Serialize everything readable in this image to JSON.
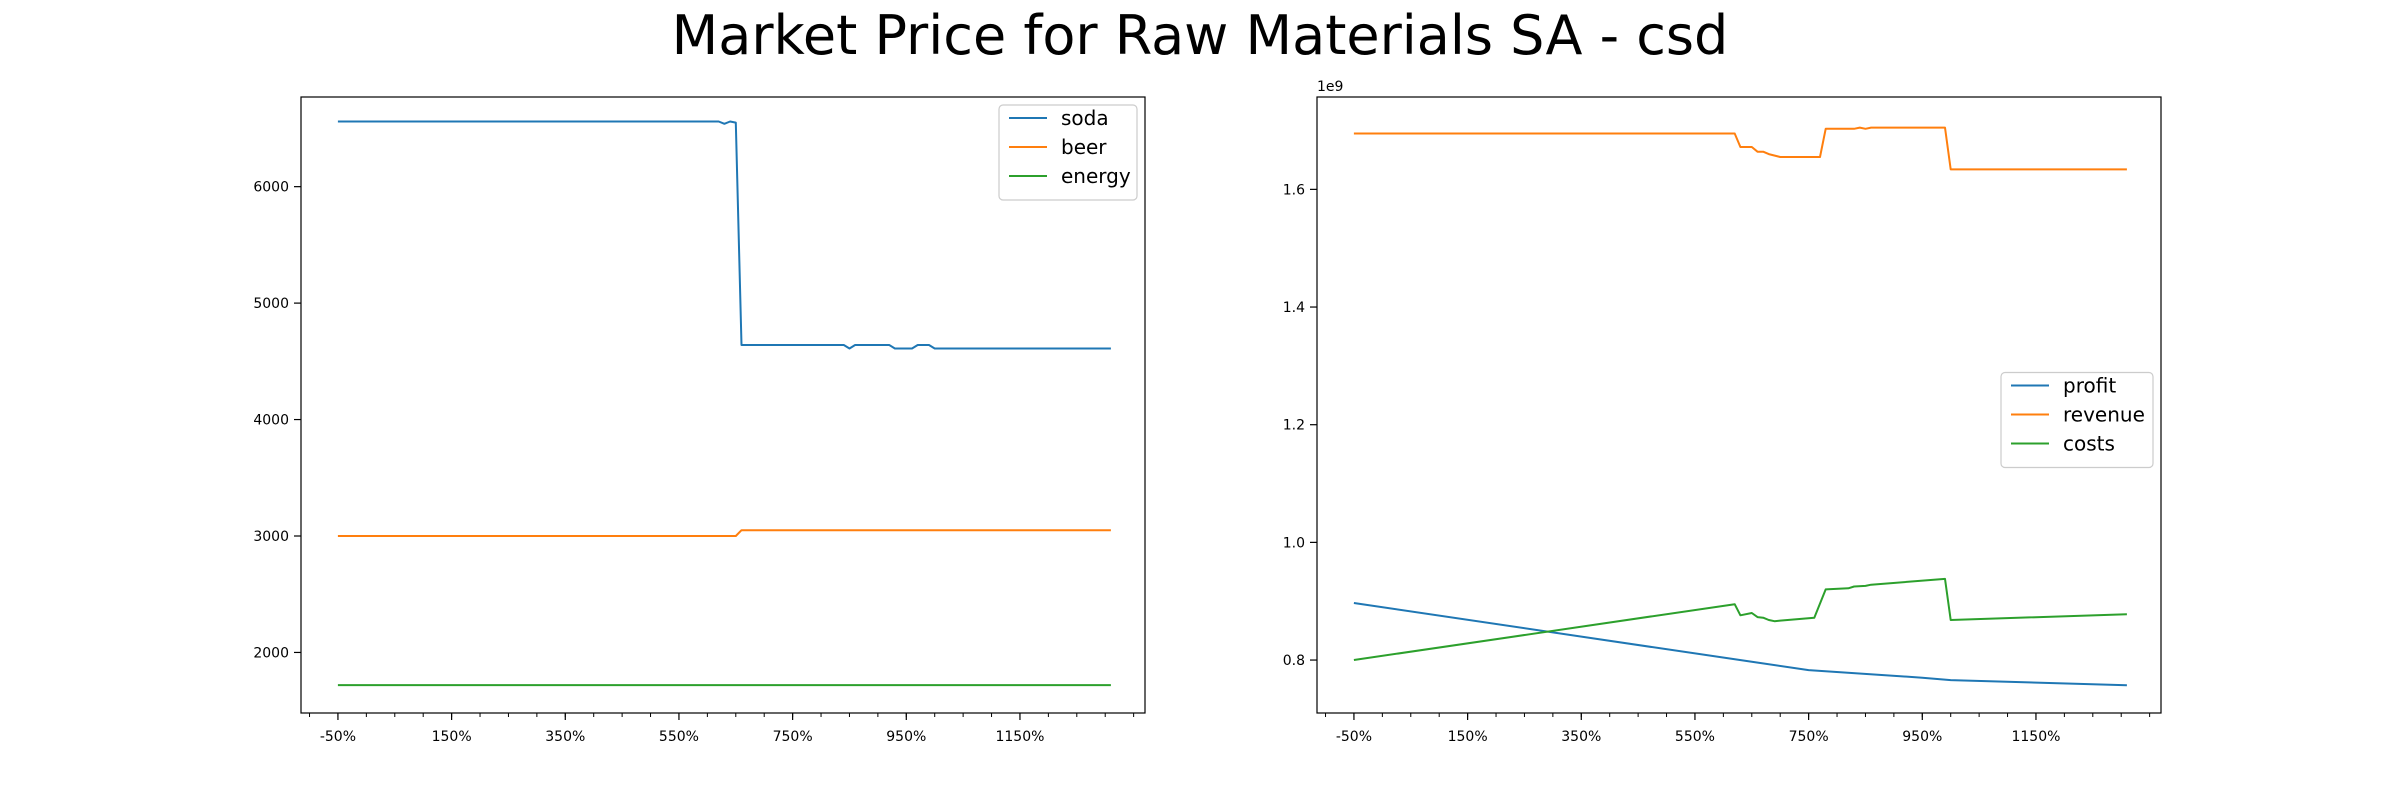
{
  "title": "Market Price for Raw Materials SA - csd",
  "chart_data": [
    {
      "type": "line",
      "x_tick_labels": [
        "-50%",
        "150%",
        "350%",
        "550%",
        "750%",
        "950%",
        "1150%"
      ],
      "x_ticks": [
        -50,
        150,
        350,
        550,
        750,
        950,
        1150
      ],
      "xlim": [
        -115,
        1370
      ],
      "ylim": [
        1480,
        6770
      ],
      "y_ticks": [
        2000,
        3000,
        4000,
        5000,
        6000
      ],
      "y_tick_labels": [
        "2000",
        "3000",
        "4000",
        "5000",
        "6000"
      ],
      "y_offset_label": "",
      "legend_position": "top-right",
      "series": [
        {
          "name": "soda",
          "color": "#1f77b4",
          "points": [
            [
              -50,
              6560
            ],
            [
              620,
              6560
            ],
            [
              630,
              6540
            ],
            [
              640,
              6560
            ],
            [
              650,
              6550
            ],
            [
              660,
              4640
            ],
            [
              840,
              4640
            ],
            [
              850,
              4610
            ],
            [
              860,
              4640
            ],
            [
              920,
              4640
            ],
            [
              930,
              4610
            ],
            [
              960,
              4610
            ],
            [
              970,
              4640
            ],
            [
              990,
              4640
            ],
            [
              1000,
              4610
            ],
            [
              1310,
              4610
            ]
          ]
        },
        {
          "name": "beer",
          "color": "#ff7f0e",
          "points": [
            [
              -50,
              3000
            ],
            [
              650,
              3000
            ],
            [
              660,
              3050
            ],
            [
              1310,
              3050
            ]
          ]
        },
        {
          "name": "energy",
          "color": "#2ca02c",
          "points": [
            [
              -50,
              1720
            ],
            [
              1310,
              1720
            ]
          ]
        }
      ]
    },
    {
      "type": "line",
      "x_tick_labels": [
        "-50%",
        "150%",
        "350%",
        "550%",
        "750%",
        "950%",
        "1150%"
      ],
      "x_ticks": [
        -50,
        150,
        350,
        550,
        750,
        950,
        1150
      ],
      "xlim": [
        -115,
        1370
      ],
      "ylim": [
        0.71,
        1.757
      ],
      "y_ticks": [
        0.8,
        1.0,
        1.2,
        1.4,
        1.6
      ],
      "y_tick_labels": [
        "0.8",
        "1.0",
        "1.2",
        "1.4",
        "1.6"
      ],
      "y_offset_label": "1e9",
      "legend_position": "center-right",
      "series": [
        {
          "name": "profit",
          "color": "#1f77b4",
          "points": [
            [
              -50,
              0.897
            ],
            [
              650,
              0.797
            ],
            [
              750,
              0.783
            ],
            [
              950,
              0.77
            ],
            [
              1000,
              0.766
            ],
            [
              1310,
              0.757
            ]
          ]
        },
        {
          "name": "revenue",
          "color": "#ff7f0e",
          "points": [
            [
              -50,
              1.695
            ],
            [
              620,
              1.695
            ],
            [
              630,
              1.672
            ],
            [
              650,
              1.672
            ],
            [
              660,
              1.664
            ],
            [
              670,
              1.664
            ],
            [
              680,
              1.66
            ],
            [
              700,
              1.655
            ],
            [
              760,
              1.655
            ],
            [
              770,
              1.655
            ],
            [
              780,
              1.703
            ],
            [
              830,
              1.703
            ],
            [
              840,
              1.705
            ],
            [
              850,
              1.703
            ],
            [
              860,
              1.705
            ],
            [
              990,
              1.705
            ],
            [
              1000,
              1.634
            ],
            [
              1310,
              1.634
            ]
          ]
        },
        {
          "name": "costs",
          "color": "#2ca02c",
          "points": [
            [
              -50,
              0.8
            ],
            [
              620,
              0.895
            ],
            [
              630,
              0.876
            ],
            [
              650,
              0.88
            ],
            [
              660,
              0.873
            ],
            [
              670,
              0.872
            ],
            [
              680,
              0.868
            ],
            [
              690,
              0.866
            ],
            [
              700,
              0.867
            ],
            [
              760,
              0.872
            ],
            [
              780,
              0.92
            ],
            [
              820,
              0.922
            ],
            [
              830,
              0.925
            ],
            [
              850,
              0.926
            ],
            [
              860,
              0.928
            ],
            [
              990,
              0.938
            ],
            [
              1000,
              0.868
            ],
            [
              1310,
              0.878
            ]
          ]
        }
      ]
    }
  ]
}
